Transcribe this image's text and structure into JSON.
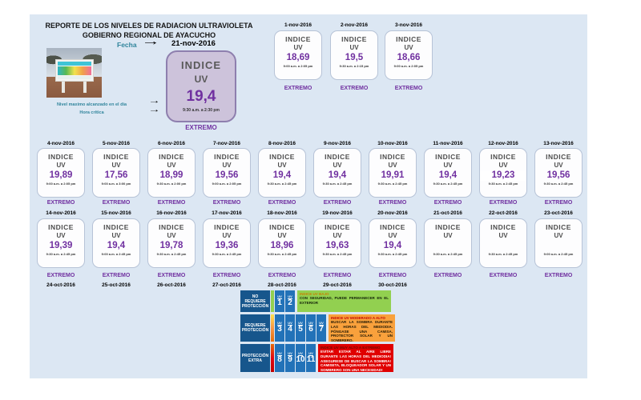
{
  "report": {
    "title_line1": "REPORTE DE LOS NIVELES DE RADIACION ULTRAVIOLETA",
    "title_line2": "GOBIERNO REGIONAL DE AYACUCHO",
    "fecha_label": "Fecha",
    "fecha_value": "21-nov-2016",
    "max_level_label": "Nivel maximo alcanzado en el dia",
    "critical_hour_label": "Hora critica"
  },
  "card_labels": {
    "indice": "INDICE",
    "uv": "UV"
  },
  "featured_card": {
    "indice": "INDICE",
    "uv": "UV",
    "value": "19,4",
    "time": "9:30 a.m. a 2:30 pm",
    "status": "EXTREMO"
  },
  "rows": [
    {
      "cards": [
        {
          "date": "1-nov-2016",
          "value": "18,69",
          "time": "9:00 a.m. a 2:05 pm",
          "status": "EXTREMO"
        },
        {
          "date": "2-nov-2016",
          "value": "19,5",
          "time": "9:30 a.m. a 2:15 pm",
          "status": "EXTREMO"
        },
        {
          "date": "3-nov-2016",
          "value": "18,66",
          "time": "9:00 a.m. a 2:05 pm",
          "status": "EXTREMO"
        }
      ]
    },
    {
      "cards": [
        {
          "date": "4-nov-2016",
          "value": "19,89",
          "time": "9:00 a.m. a 2:05 pm",
          "status": "EXTREMO"
        },
        {
          "date": "5-nov-2016",
          "value": "17,56",
          "time": "9:00 a.m. a 3:00 pm",
          "status": "EXTREMO"
        },
        {
          "date": "6-nov-2016",
          "value": "18,99",
          "time": "9:30 a.m. a 2:00 pm",
          "status": "EXTREMO"
        },
        {
          "date": "7-nov-2016",
          "value": "19,56",
          "time": "9:00 a.m. a 2:05 pm",
          "status": "EXTREMO"
        },
        {
          "date": "8-nov-2016",
          "value": "19,4",
          "time": "9:30 a.m. a 2:45 pm",
          "status": "EXTREMO"
        },
        {
          "date": "9-nov-2016",
          "value": "19,4",
          "time": "9:30 a.m. a 2:45 pm",
          "status": "EXTREMO"
        },
        {
          "date": "10-nov-2016",
          "value": "19,91",
          "time": "9:30 a.m. a 2:45 pm",
          "status": "EXTREMO"
        },
        {
          "date": "11-nov-2016",
          "value": "19,4",
          "time": "9:30 a.m. a 2:45 pm",
          "status": "EXTREMO"
        },
        {
          "date": "12-nov-2016",
          "value": "19,23",
          "time": "9:30 a.m. a 2:45 pm",
          "status": "EXTREMO",
          "highlight": true
        },
        {
          "date": "13-nov-2016",
          "value": "19,56",
          "time": "9:30 a.m. a 2:45 pm",
          "status": "EXTREMO"
        }
      ]
    },
    {
      "cards": [
        {
          "date": "14-nov-2016",
          "value": "19,39",
          "time": "9:30 a.m. a 2:45 pm",
          "status": "EXTREMO"
        },
        {
          "date": "15-nov-2016",
          "value": "19,4",
          "time": "9:00 a.m. a 2:45 pm",
          "status": "EXTREMO"
        },
        {
          "date": "16-nov-2016",
          "value": "19,78",
          "time": "9:30 a.m. a 2:45 pm",
          "status": "EXTREMO"
        },
        {
          "date": "17-nov-2016",
          "value": "19,36",
          "time": "9:30 a.m. a 2:45 pm",
          "status": "EXTREMO"
        },
        {
          "date": "18-nov-2016",
          "value": "18,96",
          "time": "9:30 a.m. a 2:45 pm",
          "status": "EXTREMO"
        },
        {
          "date": "19-nov-2016",
          "value": "19,63",
          "time": "9:30 a.m. a 2:45 pm",
          "status": "EXTREMO"
        },
        {
          "date": "20-nov-2016",
          "value": "19,4",
          "time": "9:30 a.m. a 2:45 pm",
          "status": "EXTREMO"
        },
        {
          "date": "21-oct-2016",
          "value": "",
          "time": "9:30 a.m. a 2:45 pm",
          "status": "EXTREMO"
        },
        {
          "date": "22-oct-2016",
          "value": "",
          "time": "9:30 a.m. a 2:45 pm",
          "status": "EXTREMO"
        },
        {
          "date": "23-oct-2016",
          "value": "",
          "time": "9:00 a.m. a 2:45 pm",
          "status": "EXTREMO"
        }
      ]
    }
  ],
  "extra_dates": [
    "24-oct-2016",
    "25-oct-2016",
    "26-oct-2016",
    "27-oct-2016",
    "28-oct-2016",
    "29-oct-2016",
    "30-oct-2016"
  ],
  "legend": {
    "rows": [
      {
        "label": "NO REQUIERE PROTECCIÓN",
        "uv_levels": [
          "1",
          "2"
        ],
        "uv_tag": "UV",
        "header": "INDICE UV BAJO",
        "body": "CON SEGURIDAD, PUEDE PERMANECER EN EL EXTERIOR",
        "color": "#92D050"
      },
      {
        "label": "REQUIERE PROTECCIÓN",
        "uv_levels": [
          "3",
          "4",
          "5",
          "6",
          "7"
        ],
        "uv_tag": "UV",
        "header": "INDICE UV MODERADO A ALTO",
        "body": "BUSCAR LA SOMBRA DURANTE LAS HORAS DEL MEDIODIA. PÓNGASE UNA CAMISA, PROTECTOR SOLAR Y UN SOMBRERO.",
        "color": "#F9A13C"
      },
      {
        "label": "PROTECCIÓN EXTRA",
        "uv_levels": [
          "8",
          "9",
          "10",
          "11"
        ],
        "uv_tag": "UV",
        "header": "INDICE UV MUY ALTO A EXTREMO",
        "body": "EVITAR ESTAR AL AIRE LIBRE DURANTE LAS HORAS DEL MEDIODIA! ASEGURESE DE BUSCAR LA SOMBRA! CAMISETA, BLOQUEADOR SOLAR Y UN SOMBRERO SON UNA NECESIDAD!",
        "color": "#E00000"
      }
    ]
  },
  "colors": {
    "panel_bg": "#dce7f3",
    "purple_accent": "#7030A0",
    "teal_label": "#31859C",
    "legend_blue": "#17568C",
    "uv_box_blue": "#2272B8",
    "featured_card_bg": "#cdc3db"
  }
}
